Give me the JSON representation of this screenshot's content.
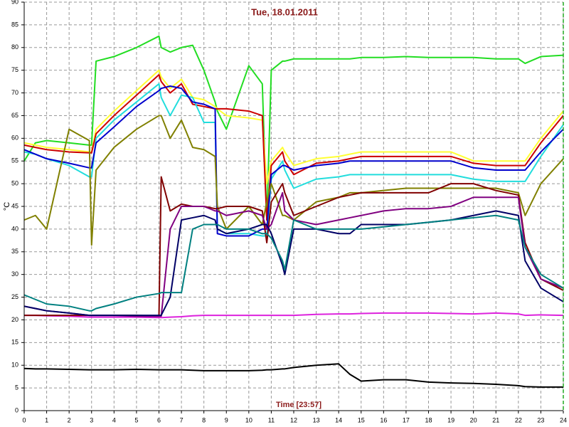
{
  "chart_data": {
    "type": "line",
    "title": "Tue, 18.01.2011",
    "x_label": "Time [23:57]",
    "y_label": "°C",
    "x": [
      0,
      0.5,
      1,
      2,
      2.9,
      3,
      3.2,
      4,
      5,
      6,
      6.1,
      6.5,
      7,
      7.5,
      8,
      8.5,
      8.6,
      9,
      10,
      10.6,
      10.8,
      11,
      11.5,
      11.6,
      12,
      13,
      14,
      14.5,
      15,
      16,
      17,
      18,
      19,
      20,
      21,
      22,
      22.3,
      23,
      24
    ],
    "xlim": [
      0,
      24
    ],
    "ylim": [
      0,
      90
    ],
    "xticks": [
      0,
      1,
      2,
      3,
      4,
      5,
      6,
      7,
      8,
      9,
      10,
      11,
      12,
      13,
      14,
      15,
      16,
      17,
      18,
      19,
      20,
      21,
      22,
      23,
      24
    ],
    "yticks": [
      0,
      5,
      10,
      15,
      20,
      25,
      30,
      35,
      40,
      45,
      50,
      55,
      60,
      65,
      70,
      75,
      80,
      85,
      90
    ],
    "grid": true,
    "series": [
      {
        "color": "#000000",
        "values": [
          9.3,
          9.2,
          9.2,
          9.1,
          9.0,
          9.0,
          9.0,
          9.0,
          9.1,
          9.0,
          9.0,
          9.0,
          9.0,
          8.9,
          8.8,
          8.8,
          8.8,
          8.8,
          8.8,
          8.9,
          9.0,
          9.0,
          9.2,
          9.2,
          9.5,
          10.0,
          10.3,
          8.0,
          6.5,
          6.8,
          6.8,
          6.3,
          6.1,
          6.0,
          5.8,
          5.5,
          5.3,
          5.2,
          5.2
        ]
      },
      {
        "color": "#dd22dd",
        "values": [
          21,
          21,
          20.9,
          20.8,
          20.6,
          20.6,
          20.6,
          20.6,
          20.6,
          20.5,
          20.5,
          20.6,
          20.7,
          20.9,
          21,
          21,
          21,
          21,
          21,
          21,
          21,
          21,
          21,
          21,
          21,
          21.2,
          21.3,
          21.3,
          21.4,
          21.5,
          21.5,
          21.5,
          21.4,
          21.3,
          21.5,
          21.3,
          21,
          21.1,
          21
        ]
      },
      {
        "color": "#22dd22",
        "values": [
          55,
          59,
          59.5,
          59,
          58.5,
          58.5,
          77,
          78,
          80,
          82.5,
          80,
          79,
          80,
          80.5,
          75,
          68,
          66,
          62,
          76,
          72,
          42,
          75,
          77,
          77,
          77.5,
          77.5,
          77.5,
          77.5,
          77.8,
          77.8,
          78,
          77.8,
          77.8,
          77.8,
          77.5,
          77.5,
          76.5,
          78,
          78.3
        ]
      },
      {
        "color": "#ffff33",
        "values": [
          59,
          58.5,
          58,
          57.5,
          57,
          57,
          62,
          66,
          70.5,
          75,
          73.5,
          71,
          73,
          69,
          68.5,
          67,
          66.5,
          65,
          64.5,
          64,
          50,
          55,
          58,
          57,
          54,
          55.5,
          56,
          56.5,
          57,
          57,
          57,
          57,
          57,
          55,
          55,
          55,
          55,
          60,
          66
        ]
      },
      {
        "color": "#cc0000",
        "values": [
          58.5,
          58,
          57.5,
          57,
          56.8,
          56.8,
          61,
          65,
          69.5,
          74,
          72.5,
          70,
          72,
          67.5,
          67,
          66.5,
          66.5,
          66.5,
          66,
          65,
          42,
          54,
          57,
          55,
          52,
          54.5,
          55,
          55.5,
          56,
          56,
          56,
          56,
          56,
          54.5,
          54,
          54,
          54,
          59,
          65
        ]
      },
      {
        "color": "#22dddd",
        "values": [
          57,
          56.5,
          55.5,
          54,
          51.5,
          51.5,
          60,
          64,
          68,
          72,
          69,
          65,
          69.5,
          69,
          63.5,
          63.5,
          40,
          39,
          39,
          38.5,
          38.5,
          51,
          55,
          53,
          49,
          51,
          51.5,
          52,
          52,
          52,
          52,
          52,
          52,
          51,
          50.5,
          50.5,
          50.5,
          56,
          63
        ]
      },
      {
        "color": "#0000cc",
        "values": [
          57.5,
          56.5,
          55.5,
          54.5,
          53.5,
          53.5,
          59,
          62.5,
          67,
          70.5,
          71,
          71.5,
          71,
          68,
          67.5,
          66.5,
          39,
          38.5,
          38.5,
          40,
          40,
          52,
          54,
          54,
          53,
          54,
          54.5,
          55,
          55,
          55,
          55,
          55,
          55,
          53.5,
          53,
          53,
          53,
          57,
          62
        ]
      },
      {
        "color": "#808000",
        "values": [
          42,
          43,
          40,
          62,
          59.5,
          36.5,
          53,
          58,
          62,
          65,
          65,
          60,
          64,
          58,
          57.5,
          56,
          45,
          40,
          45,
          41,
          46,
          50,
          43,
          43,
          42,
          46,
          47,
          48,
          48,
          48.5,
          49,
          49,
          49,
          49,
          49,
          48,
          43,
          50,
          55.5
        ]
      },
      {
        "color": "#800000",
        "values": [
          21,
          21,
          21,
          21,
          21,
          21,
          21,
          21,
          21,
          20.8,
          51.5,
          44,
          45.5,
          45,
          45,
          44.5,
          44.5,
          45,
          45,
          44,
          37,
          46,
          50,
          48,
          43,
          45,
          47,
          47.5,
          48,
          48,
          48,
          48,
          50,
          50,
          48.5,
          47.5,
          37,
          29,
          26.5
        ]
      },
      {
        "color": "#800080",
        "values": [
          23,
          22.5,
          22,
          21.5,
          21,
          21,
          21,
          21,
          20.8,
          20.8,
          20.8,
          40,
          45,
          45,
          45,
          44,
          44,
          43,
          44,
          43,
          40,
          41,
          48,
          44,
          42,
          41,
          42,
          42.5,
          43,
          44,
          44.5,
          44.5,
          45,
          47,
          47,
          47,
          36,
          29,
          27
        ]
      },
      {
        "color": "#000066",
        "values": [
          23,
          22.5,
          22,
          21.5,
          21,
          21,
          21,
          21,
          21,
          21,
          21,
          25,
          42,
          42.5,
          43,
          42,
          40,
          39,
          40,
          41,
          41,
          39,
          32,
          30,
          40,
          40,
          39,
          39,
          41,
          41,
          41,
          41.5,
          42,
          43,
          44,
          43,
          33,
          27,
          24
        ]
      },
      {
        "color": "#008080",
        "values": [
          25.5,
          24.5,
          23.5,
          23,
          22,
          22,
          22.5,
          23.5,
          25,
          25.8,
          26,
          26,
          26,
          40,
          41,
          41,
          41,
          40,
          40,
          39,
          39,
          38,
          33,
          31,
          42,
          40,
          40,
          40,
          40,
          40.5,
          41,
          41.5,
          42,
          42.5,
          43,
          42,
          36,
          30,
          27
        ]
      }
    ]
  }
}
